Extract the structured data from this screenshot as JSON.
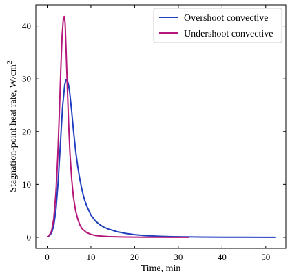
{
  "chart_data": {
    "type": "line",
    "title": "",
    "xlabel": "Time, min",
    "ylabel": "Stagnation-point heat rate, W/cm",
    "ylabel_superscript": "2",
    "xlim": [
      -2.6,
      54.6
    ],
    "ylim": [
      -2.1,
      44.0
    ],
    "xticks": [
      0,
      10,
      20,
      30,
      40,
      50
    ],
    "yticks": [
      0,
      10,
      20,
      30,
      40
    ],
    "grid": false,
    "legend_position": "top-right",
    "series": [
      {
        "name": "Overshoot convective",
        "color": "#1f3fbf",
        "x": [
          0,
          0.5,
          1,
          1.5,
          2,
          2.5,
          3,
          3.5,
          4,
          4.3,
          4.6,
          4.9,
          5.2,
          5.6,
          6,
          6.5,
          7,
          7.5,
          8,
          8.5,
          9,
          10,
          11,
          12,
          13,
          14,
          16,
          18,
          20,
          22,
          24,
          26,
          28,
          30,
          32,
          35,
          40,
          45,
          50,
          52.2
        ],
        "y": [
          0.1,
          0.3,
          0.8,
          2.2,
          5.2,
          10.5,
          17.5,
          24.5,
          28.8,
          29.8,
          29.7,
          28.8,
          27.0,
          23.8,
          20.3,
          16.4,
          13.3,
          10.8,
          8.8,
          7.2,
          6.0,
          4.2,
          3.1,
          2.4,
          1.9,
          1.55,
          1.05,
          0.72,
          0.5,
          0.35,
          0.25,
          0.18,
          0.13,
          0.1,
          0.08,
          0.05,
          0.03,
          0.02,
          0.01,
          0.01
        ]
      },
      {
        "name": "Undershoot convective",
        "color": "#b5167a",
        "x": [
          0,
          0.5,
          1,
          1.5,
          2,
          2.4,
          2.8,
          3.1,
          3.4,
          3.7,
          3.9,
          4.1,
          4.3,
          4.6,
          4.9,
          5.2,
          5.6,
          6,
          6.5,
          7,
          7.5,
          8,
          9,
          10,
          11,
          12,
          14,
          16,
          18,
          20,
          22,
          25,
          28,
          32.5
        ],
        "y": [
          0.1,
          0.4,
          1.2,
          3.5,
          8.5,
          15.0,
          24.0,
          31.5,
          38.0,
          41.5,
          41.8,
          40.5,
          36.0,
          28.5,
          21.5,
          16.0,
          11.0,
          7.6,
          5.0,
          3.4,
          2.3,
          1.6,
          0.9,
          0.55,
          0.35,
          0.25,
          0.14,
          0.09,
          0.06,
          0.04,
          0.03,
          0.02,
          0.01,
          0.01
        ]
      }
    ]
  }
}
